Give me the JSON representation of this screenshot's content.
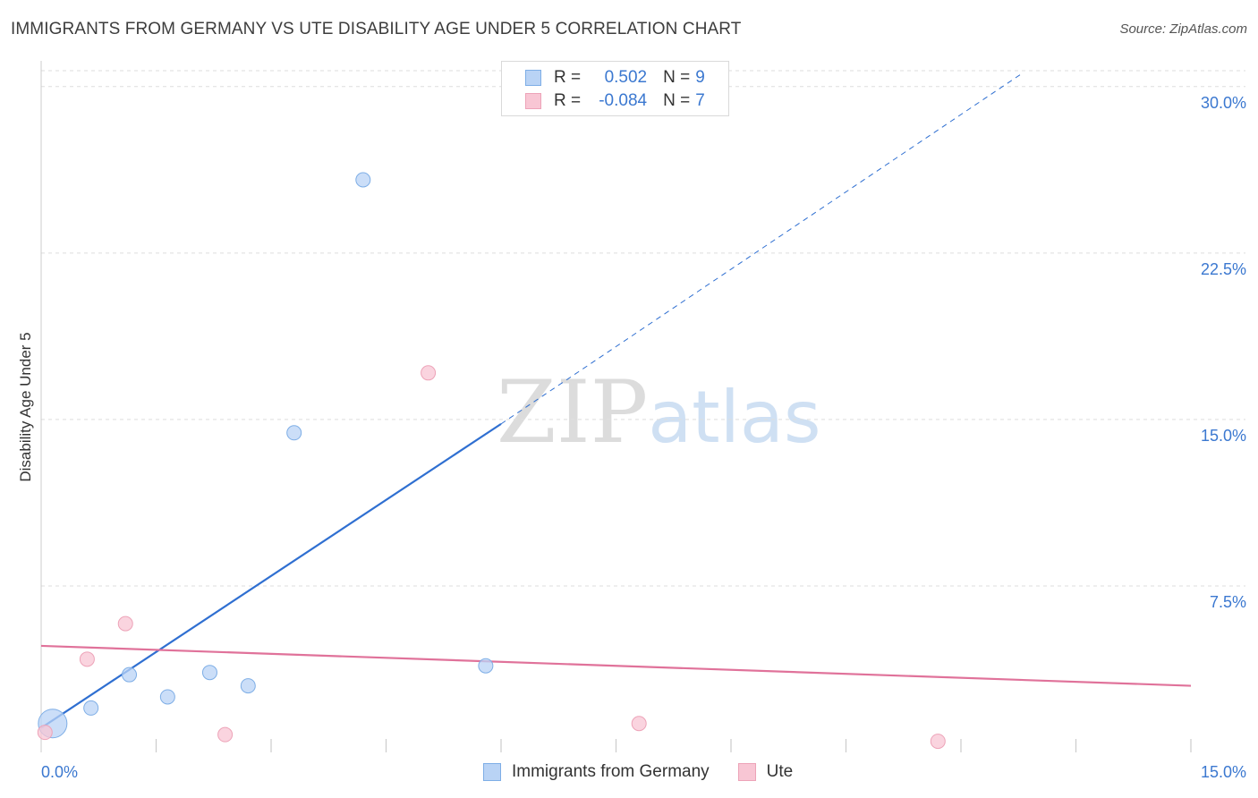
{
  "title": "IMMIGRANTS FROM GERMANY VS UTE DISABILITY AGE UNDER 5 CORRELATION CHART",
  "source": "Source: ZipAtlas.com",
  "watermark": {
    "zip": "ZIP",
    "atlas": "atlas"
  },
  "legend_top": {
    "rows": [
      {
        "r_label": "R =",
        "r_value": "0.502",
        "n_label": "N =",
        "n_value": "9"
      },
      {
        "r_label": "R =",
        "r_value": "-0.084",
        "n_label": "N =",
        "n_value": "7"
      }
    ]
  },
  "legend_bottom": {
    "items": [
      {
        "label": "Immigrants from Germany"
      },
      {
        "label": "Ute"
      }
    ]
  },
  "colors": {
    "blue_fill": "#b9d3f5",
    "blue_stroke": "#7eaee6",
    "blue_line": "#2f6fd1",
    "pink_fill": "#f8c6d4",
    "pink_stroke": "#eda3b8",
    "pink_line": "#e0729a",
    "grid": "#dedede",
    "tick_text": "#3b78d0"
  },
  "chart_data": {
    "type": "scatter",
    "title": "IMMIGRANTS FROM GERMANY VS UTE DISABILITY AGE UNDER 5 CORRELATION CHART",
    "xlabel": "",
    "ylabel": "Disability Age Under 5",
    "xlim": [
      0,
      15
    ],
    "ylim": [
      0,
      31
    ],
    "x_tick_labels": [
      {
        "value": 0,
        "label": "0.0%"
      },
      {
        "value": 15,
        "label": "15.0%"
      }
    ],
    "y_ticks": [
      {
        "value": 7.5,
        "label": "7.5%"
      },
      {
        "value": 15,
        "label": "15.0%"
      },
      {
        "value": 22.5,
        "label": "22.5%"
      },
      {
        "value": 30,
        "label": "30.0%"
      }
    ],
    "x_minor_ticks": [
      1.5,
      3.0,
      4.5,
      6.0,
      7.5,
      9.0,
      10.5,
      12.0,
      13.5,
      15.0
    ],
    "series": [
      {
        "name": "Immigrants from Germany",
        "color": "blue",
        "points": [
          {
            "x": 0.15,
            "y": 1.3,
            "size": "large"
          },
          {
            "x": 0.65,
            "y": 2.0
          },
          {
            "x": 1.15,
            "y": 3.5
          },
          {
            "x": 1.65,
            "y": 2.5
          },
          {
            "x": 2.2,
            "y": 3.6
          },
          {
            "x": 2.7,
            "y": 3.0
          },
          {
            "x": 3.3,
            "y": 14.4
          },
          {
            "x": 4.2,
            "y": 25.8
          },
          {
            "x": 5.8,
            "y": 3.9
          }
        ],
        "trend": {
          "x_start": 0.0,
          "y_start": 1.1,
          "x_solid_end": 6.0,
          "y_solid_end": 14.8,
          "x_end": 12.8,
          "y_end": 30.6
        }
      },
      {
        "name": "Ute",
        "color": "pink",
        "points": [
          {
            "x": 0.05,
            "y": 0.9
          },
          {
            "x": 0.6,
            "y": 4.2
          },
          {
            "x": 1.1,
            "y": 5.8
          },
          {
            "x": 2.4,
            "y": 0.8
          },
          {
            "x": 5.05,
            "y": 17.1
          },
          {
            "x": 7.8,
            "y": 1.3
          },
          {
            "x": 11.7,
            "y": 0.5
          }
        ],
        "trend": {
          "x_start": 0.0,
          "y_start": 4.8,
          "x_end": 15.0,
          "y_end": 3.0
        }
      }
    ]
  }
}
